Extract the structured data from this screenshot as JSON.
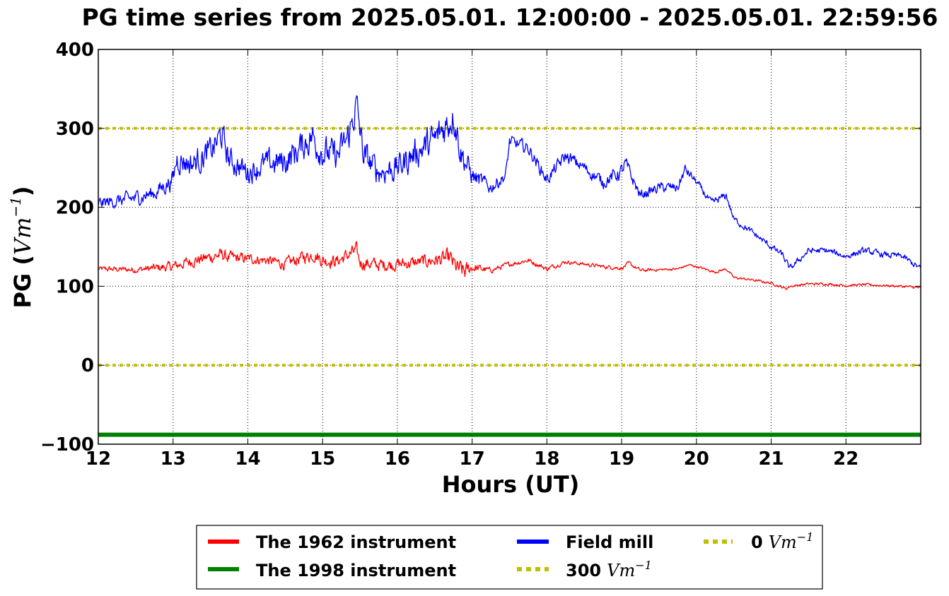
{
  "chart_data": {
    "type": "line",
    "title": "PG time series from 2025.05.01. 12:00:00 - 2025.05.01. 22:59:56",
    "xlabel": "Hours (UT)",
    "ylabel_text": "PG (",
    "ylabel_math": "Vm",
    "ylabel_sup": "−1",
    "ylabel_close": ")",
    "xlim": [
      12,
      23
    ],
    "ylim": [
      -100,
      400
    ],
    "xticks": [
      12,
      13,
      14,
      15,
      16,
      17,
      18,
      19,
      20,
      21,
      22
    ],
    "yticks": [
      -100,
      0,
      100,
      200,
      300,
      400
    ],
    "ytick_labels": [
      "−100",
      "0",
      "100",
      "200",
      "300",
      "400"
    ],
    "grid": true,
    "legend_position": "below plot, centered",
    "series": [
      {
        "name": "The 1962 instrument",
        "color": "#ff0000",
        "style": "solid",
        "x": [
          12.0,
          12.5,
          13.0,
          13.25,
          13.5,
          13.65,
          13.75,
          14.0,
          14.25,
          14.5,
          14.75,
          14.9,
          15.0,
          15.2,
          15.35,
          15.45,
          15.5,
          15.75,
          16.0,
          16.25,
          16.5,
          16.7,
          16.8,
          16.9,
          17.0,
          17.25,
          17.5,
          17.75,
          18.0,
          18.25,
          18.5,
          18.75,
          19.0,
          19.1,
          19.25,
          19.5,
          19.75,
          19.9,
          20.0,
          20.25,
          20.4,
          20.5,
          20.75,
          21.0,
          21.2,
          21.25,
          21.5,
          21.75,
          22.0,
          22.25,
          22.5,
          22.75,
          23.0
        ],
        "y": [
          122,
          121,
          125,
          132,
          137,
          140,
          136,
          135,
          133,
          128,
          137,
          140,
          133,
          132,
          140,
          145,
          130,
          127,
          128,
          130,
          133,
          135,
          122,
          118,
          124,
          120,
          128,
          133,
          122,
          131,
          128,
          125,
          123,
          129,
          120,
          121,
          122,
          127,
          125,
          118,
          122,
          111,
          108,
          104,
          97,
          100,
          103,
          103,
          101,
          102,
          101,
          100,
          98
        ],
        "noise": [
          4,
          5,
          8,
          9,
          10,
          10,
          10,
          8,
          8,
          9,
          10,
          10,
          11,
          10,
          11,
          12,
          11,
          10,
          10,
          10,
          11,
          14,
          15,
          15,
          8,
          4,
          4,
          4,
          4,
          3,
          3,
          3,
          3,
          3,
          3,
          2,
          2,
          2,
          2,
          2,
          2,
          2,
          2,
          2,
          2,
          2,
          2,
          2,
          2,
          2,
          2,
          2,
          2
        ]
      },
      {
        "name": "The 1998 instrument",
        "color": "#008000",
        "style": "solid",
        "x": [
          12,
          23
        ],
        "y": [
          -88,
          -88
        ]
      },
      {
        "name": "Field mill",
        "color": "#0000ff",
        "style": "solid",
        "x": [
          12.0,
          12.25,
          12.5,
          12.75,
          13.0,
          13.05,
          13.25,
          13.5,
          13.65,
          13.75,
          14.0,
          14.25,
          14.5,
          14.7,
          14.85,
          15.0,
          15.2,
          15.35,
          15.45,
          15.55,
          15.75,
          16.0,
          16.25,
          16.5,
          16.7,
          16.75,
          16.85,
          17.0,
          17.25,
          17.45,
          17.5,
          17.75,
          18.0,
          18.25,
          18.5,
          18.75,
          19.0,
          19.05,
          19.25,
          19.5,
          19.75,
          19.85,
          20.0,
          20.2,
          20.4,
          20.5,
          20.75,
          21.0,
          21.15,
          21.25,
          21.5,
          21.75,
          22.0,
          22.25,
          22.5,
          22.75,
          23.0
        ],
        "y": [
          205,
          208,
          212,
          218,
          235,
          262,
          255,
          270,
          292,
          260,
          245,
          255,
          258,
          275,
          290,
          270,
          265,
          290,
          330,
          265,
          245,
          250,
          270,
          285,
          310,
          320,
          270,
          240,
          225,
          240,
          283,
          275,
          235,
          265,
          250,
          232,
          245,
          255,
          215,
          225,
          225,
          248,
          232,
          205,
          215,
          185,
          168,
          150,
          140,
          122,
          145,
          145,
          138,
          145,
          140,
          138,
          122
        ],
        "noise": [
          10,
          10,
          12,
          12,
          15,
          20,
          20,
          22,
          24,
          20,
          18,
          20,
          22,
          24,
          26,
          24,
          24,
          26,
          28,
          24,
          20,
          22,
          24,
          26,
          28,
          28,
          24,
          15,
          10,
          10,
          10,
          10,
          10,
          10,
          10,
          10,
          12,
          12,
          8,
          8,
          8,
          8,
          6,
          6,
          6,
          5,
          5,
          5,
          5,
          5,
          5,
          5,
          5,
          5,
          5,
          5,
          5
        ]
      },
      {
        "name": "300 Vm⁻¹",
        "label_number": "300",
        "label_math": "Vm",
        "label_sup": "−1",
        "color": "#bfbf00",
        "style": "dotted",
        "x": [
          12,
          23
        ],
        "y": [
          300,
          300
        ]
      },
      {
        "name": "0 Vm⁻¹",
        "label_number": "0",
        "label_math": "Vm",
        "label_sup": "−1",
        "color": "#bfbf00",
        "style": "dotted",
        "x": [
          12,
          23
        ],
        "y": [
          0,
          0
        ]
      }
    ]
  }
}
